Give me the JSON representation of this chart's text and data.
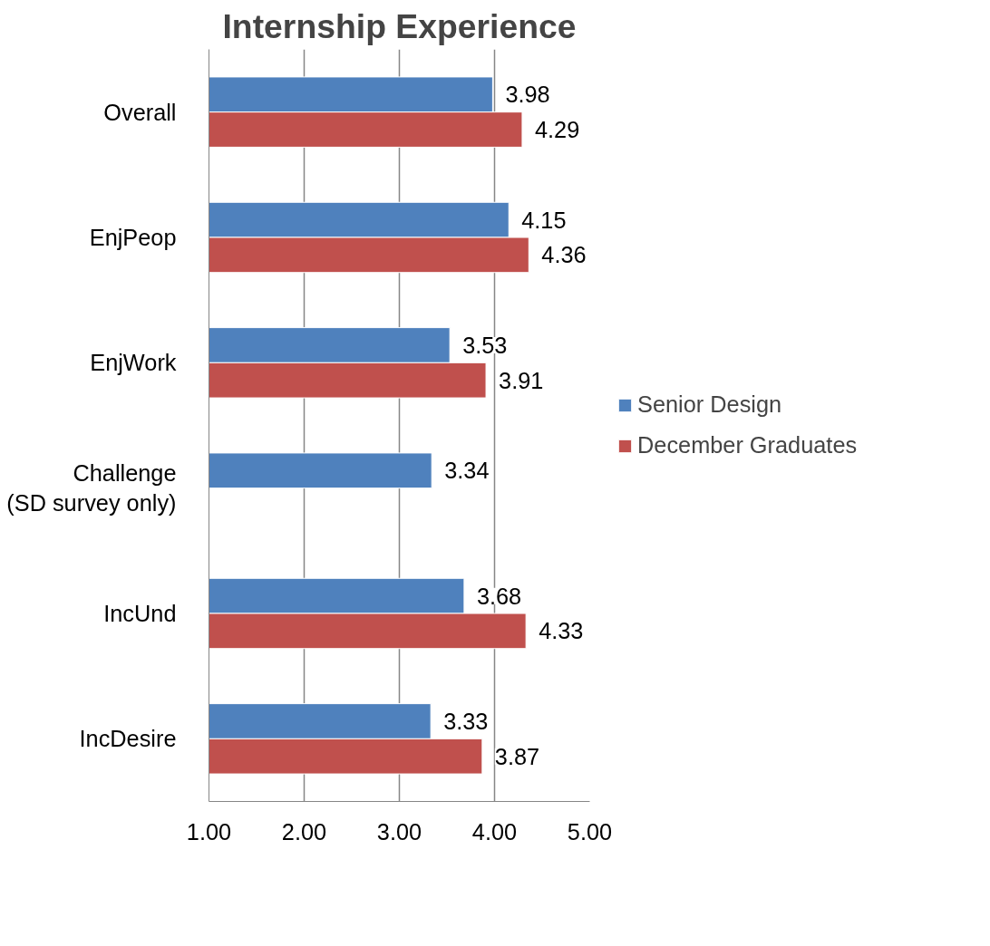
{
  "chart_data": {
    "type": "bar",
    "orientation": "horizontal",
    "title": "Internship Experience",
    "categories": [
      "Overall",
      "EnjPeop",
      "EnjWork",
      "Challenge\n(SD survey only)",
      "IncUnd",
      "IncDesire"
    ],
    "series": [
      {
        "name": "Senior Design",
        "color": "#4f81bd",
        "values": [
          3.98,
          4.15,
          3.53,
          3.34,
          3.68,
          3.33
        ]
      },
      {
        "name": "December Graduates",
        "color": "#c0504d",
        "values": [
          4.29,
          4.36,
          3.91,
          null,
          4.33,
          3.87
        ]
      }
    ],
    "xlim": [
      1,
      5
    ],
    "xticks": [
      {
        "value": 1,
        "label": "1.00"
      },
      {
        "value": 2,
        "label": "2.00"
      },
      {
        "value": 3,
        "label": "3.00"
      },
      {
        "value": 4,
        "label": "4.00"
      },
      {
        "value": 5,
        "label": "5.00"
      }
    ],
    "grid": "x",
    "legend": "right",
    "data_labels": true
  }
}
